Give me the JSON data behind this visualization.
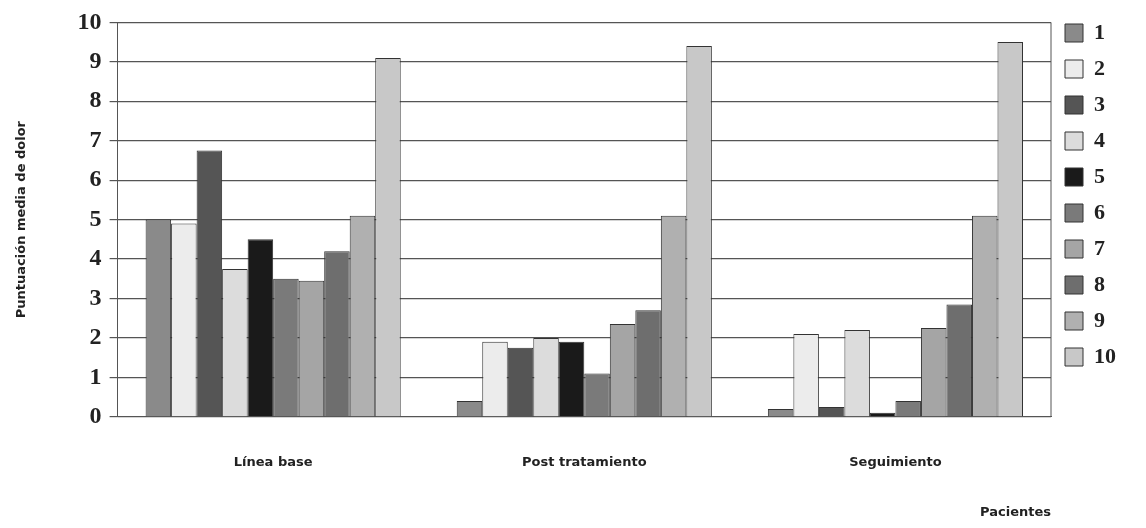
{
  "chart_data": {
    "type": "bar",
    "xlabel": "Pacientes",
    "ylabel": "Puntuación media de dolor",
    "categories": [
      "Línea base",
      "Post tratamiento",
      "Seguimiento"
    ],
    "series": [
      {
        "name": "1",
        "color": "#8a8a8a",
        "values": [
          5.0,
          0.4,
          0.2
        ]
      },
      {
        "name": "2",
        "color": "#ececec",
        "values": [
          4.9,
          1.9,
          2.1
        ]
      },
      {
        "name": "3",
        "color": "#555555",
        "values": [
          6.75,
          1.75,
          0.25
        ]
      },
      {
        "name": "4",
        "color": "#dcdcdc",
        "values": [
          3.75,
          2.0,
          2.2
        ]
      },
      {
        "name": "5",
        "color": "#1a1a1a",
        "values": [
          4.5,
          1.9,
          0.1
        ]
      },
      {
        "name": "6",
        "color": "#7a7a7a",
        "values": [
          3.5,
          1.1,
          0.4
        ]
      },
      {
        "name": "7",
        "color": "#a5a5a5",
        "values": [
          3.45,
          2.35,
          2.25
        ]
      },
      {
        "name": "8",
        "color": "#6e6e6e",
        "values": [
          4.2,
          2.7,
          2.85
        ]
      },
      {
        "name": "9",
        "color": "#b0b0b0",
        "values": [
          5.1,
          5.1,
          5.1
        ]
      },
      {
        "name": "10",
        "color": "#c8c8c8",
        "values": [
          9.1,
          9.4,
          9.5
        ]
      }
    ],
    "ylim": [
      0,
      10
    ],
    "yticks": [
      0,
      1,
      2,
      3,
      4,
      5,
      6,
      7,
      8,
      9,
      10
    ],
    "grid": "y",
    "legend": "right"
  }
}
